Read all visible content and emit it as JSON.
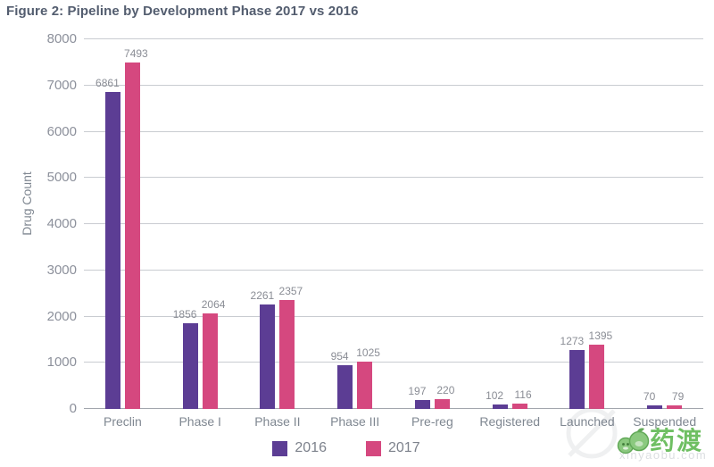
{
  "title": "Figure 2: Pipeline by Development Phase 2017 vs 2016",
  "chart_data": {
    "type": "bar",
    "categories": [
      "Preclin",
      "Phase I",
      "Phase II",
      "Phase III",
      "Pre-reg",
      "Registered",
      "Launched",
      "Suspended"
    ],
    "series": [
      {
        "name": "2016",
        "color": "#5c3d94",
        "values": [
          6861,
          1856,
          2261,
          954,
          197,
          102,
          1273,
          70
        ]
      },
      {
        "name": "2017",
        "color": "#d5487f",
        "values": [
          7493,
          2064,
          2357,
          1025,
          220,
          116,
          1395,
          79
        ]
      }
    ],
    "title": "Figure 2: Pipeline by Development Phase 2017 vs 2016",
    "xlabel": "",
    "ylabel": "Drug Count",
    "ylim": [
      0,
      8000
    ],
    "yticks": [
      0,
      1000,
      2000,
      3000,
      4000,
      5000,
      6000,
      7000,
      8000
    ],
    "grid": true,
    "bar_value_labels": true,
    "legend_position": "bottom-center"
  },
  "watermark": {
    "logo_text": "药渡",
    "faint_text": "xinyaobu.com"
  },
  "colors": {
    "title_text": "#535d6f",
    "axis_text": "#8c909b",
    "category_text": "#7f8791",
    "value_text": "#8a8d95",
    "legend_text": "#7d828c",
    "gridline": "#c9ccd1",
    "axis_line": "#a2a6ad",
    "series_2016": "#5c3d94",
    "series_2017": "#d5487f",
    "watermark_green": "#6fbf63"
  }
}
